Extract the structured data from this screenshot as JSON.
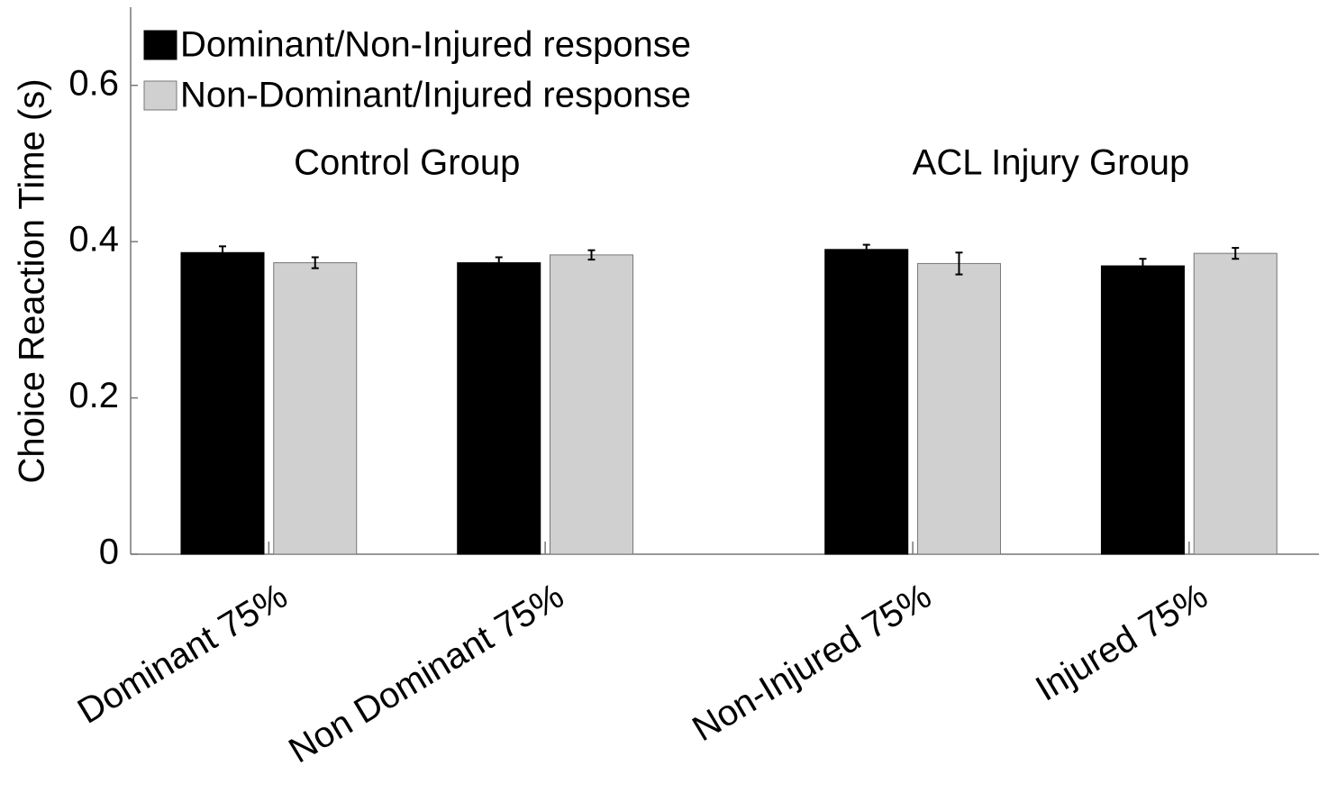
{
  "chart_data": {
    "type": "bar",
    "ylabel": "Choice Reaction Time (s)",
    "x": [
      1,
      2,
      3.33,
      4.33
    ],
    "xlim": [
      0.5,
      4.8
    ],
    "xticks": [
      {
        "value": 1,
        "label": "Dominant 75%"
      },
      {
        "value": 2,
        "label": "Non Dominant 75%"
      },
      {
        "value": 3.33,
        "label": "Non-Injured 75%"
      },
      {
        "value": 4.33,
        "label": "Injured 75%"
      }
    ],
    "ylim": [
      0,
      0.7
    ],
    "yticks": [
      0,
      0.2,
      0.4,
      0.6
    ],
    "legend": "upper left",
    "annotations": [
      {
        "text": "Control Group",
        "of": [
          0,
          1
        ]
      },
      {
        "text": "ACL Injury Group",
        "of": [
          2,
          3
        ]
      }
    ],
    "series": [
      {
        "name": "Dominant/Non-Injured response",
        "color": "#000000",
        "values": [
          0.386,
          0.373,
          0.39,
          0.369
        ],
        "errors": [
          0.008,
          0.007,
          0.006,
          0.009
        ]
      },
      {
        "name": "Non-Dominant/Injured response",
        "color": "#d0d0d0",
        "values": [
          0.373,
          0.383,
          0.372,
          0.385
        ],
        "errors": [
          0.007,
          0.006,
          0.014,
          0.007
        ]
      }
    ]
  }
}
